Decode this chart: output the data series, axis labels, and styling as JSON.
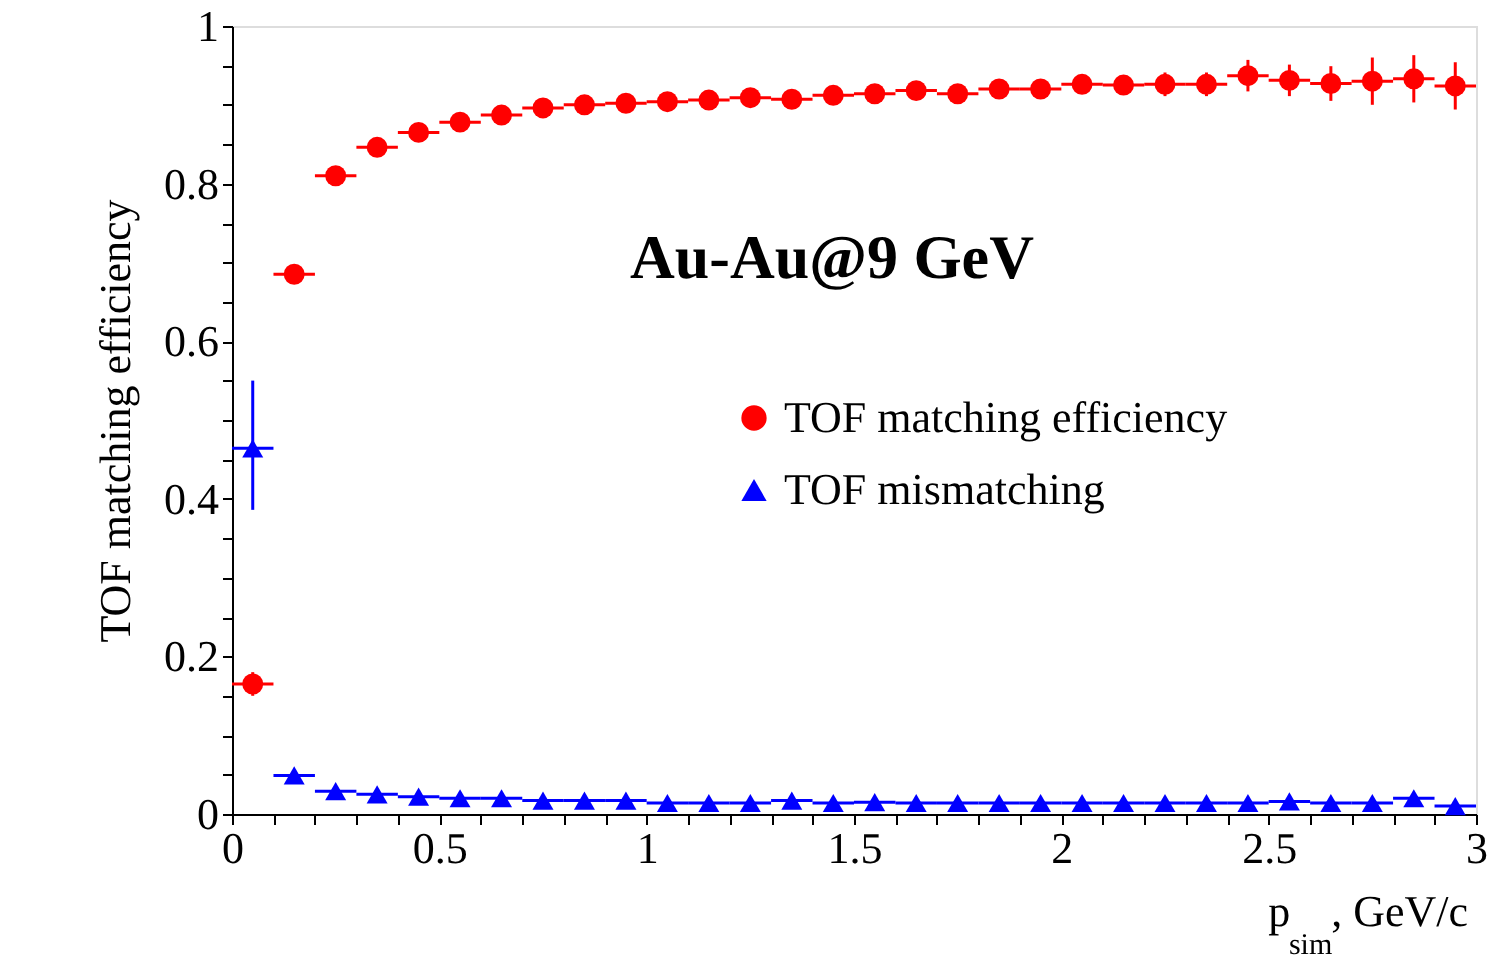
{
  "chart_data": {
    "type": "scatter",
    "ylabel": "TOF matching efficiency",
    "xlabel": "p$_{sim}$, GeV/c",
    "annotations": [
      "Au-Au@9 GeV"
    ],
    "xlim": [
      0,
      3
    ],
    "ylim": [
      0,
      1
    ],
    "xticks": [
      0,
      {
        "value": 0.1,
        "label": null
      },
      {
        "value": 0.2,
        "label": null
      },
      {
        "value": 0.3,
        "label": null
      },
      {
        "value": 0.4,
        "label": null
      },
      0.5,
      {
        "value": 0.6,
        "label": null
      },
      {
        "value": 0.7,
        "label": null
      },
      {
        "value": 0.8,
        "label": null
      },
      {
        "value": 0.9,
        "label": null
      },
      1,
      {
        "value": 1.1,
        "label": null
      },
      {
        "value": 1.2,
        "label": null
      },
      {
        "value": 1.3,
        "label": null
      },
      {
        "value": 1.4,
        "label": null
      },
      1.5,
      {
        "value": 1.6,
        "label": null
      },
      {
        "value": 1.7,
        "label": null
      },
      {
        "value": 1.8,
        "label": null
      },
      {
        "value": 1.9,
        "label": null
      },
      2,
      {
        "value": 2.1,
        "label": null
      },
      {
        "value": 2.2,
        "label": null
      },
      {
        "value": 2.3,
        "label": null
      },
      {
        "value": 2.4,
        "label": null
      },
      2.5,
      {
        "value": 2.6,
        "label": null
      },
      {
        "value": 2.7,
        "label": null
      },
      {
        "value": 2.8,
        "label": null
      },
      {
        "value": 2.9,
        "label": null
      },
      3
    ],
    "yticks": [
      0,
      {
        "value": 0.05,
        "label": null
      },
      {
        "value": 0.1,
        "label": null
      },
      {
        "value": 0.15,
        "label": null
      },
      0.2,
      {
        "value": 0.25,
        "label": null
      },
      {
        "value": 0.3,
        "label": null
      },
      {
        "value": 0.35,
        "label": null
      },
      0.4,
      {
        "value": 0.45,
        "label": null
      },
      {
        "value": 0.5,
        "label": null
      },
      {
        "value": 0.55,
        "label": null
      },
      0.6,
      {
        "value": 0.65,
        "label": null
      },
      {
        "value": 0.7,
        "label": null
      },
      {
        "value": 0.75,
        "label": null
      },
      0.8,
      {
        "value": 0.85,
        "label": null
      },
      {
        "value": 0.9,
        "label": null
      },
      {
        "value": 0.95,
        "label": null
      },
      1
    ],
    "x": [
      0.05,
      0.15,
      0.25,
      0.35,
      0.45,
      0.55,
      0.65,
      0.75,
      0.85,
      0.95,
      1.05,
      1.15,
      1.25,
      1.35,
      1.45,
      1.55,
      1.65,
      1.75,
      1.85,
      1.95,
      2.05,
      2.15,
      2.25,
      2.35,
      2.45,
      2.55,
      2.65,
      2.75,
      2.85,
      2.95
    ],
    "legend": "right",
    "grid": false,
    "series": [
      {
        "name": "TOF matching efficiency",
        "color": "#ff0000",
        "marker": "circle",
        "values": [
          0.165,
          0.685,
          0.81,
          0.846,
          0.865,
          0.878,
          0.887,
          0.896,
          0.9,
          0.902,
          0.904,
          0.906,
          0.909,
          0.907,
          0.912,
          0.914,
          0.918,
          0.914,
          0.92,
          0.92,
          0.926,
          0.925,
          0.926,
          0.926,
          0.937,
          0.931,
          0.927,
          0.93,
          0.933,
          0.924
        ],
        "errors": [
          0.015,
          0.005,
          0.005,
          0.005,
          0.005,
          0.005,
          0.005,
          0.005,
          0.005,
          0.005,
          0.005,
          0.005,
          0.005,
          0.005,
          0.005,
          0.007,
          0.008,
          0.008,
          0.01,
          0.01,
          0.01,
          0.012,
          0.015,
          0.015,
          0.02,
          0.02,
          0.022,
          0.03,
          0.03,
          0.03
        ],
        "xerrors": [
          0.05,
          0.05,
          0.05,
          0.05,
          0.05,
          0.05,
          0.05,
          0.05,
          0.05,
          0.05,
          0.05,
          0.05,
          0.05,
          0.05,
          0.05,
          0.05,
          0.05,
          0.05,
          0.05,
          0.05,
          0.05,
          0.05,
          0.05,
          0.05,
          0.05,
          0.05,
          0.05,
          0.05,
          0.05,
          0.05
        ]
      },
      {
        "name": "TOF mismatching",
        "color": "#0000ff",
        "marker": "triangle",
        "values": [
          0.464,
          0.049,
          0.029,
          0.025,
          0.022,
          0.02,
          0.02,
          0.017,
          0.017,
          0.017,
          0.014,
          0.014,
          0.014,
          0.017,
          0.014,
          0.015,
          0.014,
          0.014,
          0.014,
          0.014,
          0.014,
          0.014,
          0.014,
          0.014,
          0.014,
          0.016,
          0.014,
          0.014,
          0.02,
          0.01
        ],
        "errors": [
          [
            0.386,
            0.55
          ],
          null,
          null,
          null,
          null,
          null,
          null,
          null,
          null,
          null,
          null,
          null,
          null,
          null,
          null,
          null,
          null,
          null,
          null,
          null,
          null,
          null,
          null,
          null,
          null,
          null,
          null,
          null,
          null,
          null
        ],
        "xerrors": [
          0.05,
          0.05,
          0.05,
          0.05,
          0.05,
          0.05,
          0.05,
          0.05,
          0.05,
          0.05,
          0.05,
          0.05,
          0.05,
          0.05,
          0.05,
          0.05,
          0.05,
          0.05,
          0.05,
          0.05,
          0.05,
          0.05,
          0.05,
          0.05,
          0.05,
          0.05,
          0.05,
          0.05,
          0.05,
          0.05
        ]
      }
    ]
  }
}
